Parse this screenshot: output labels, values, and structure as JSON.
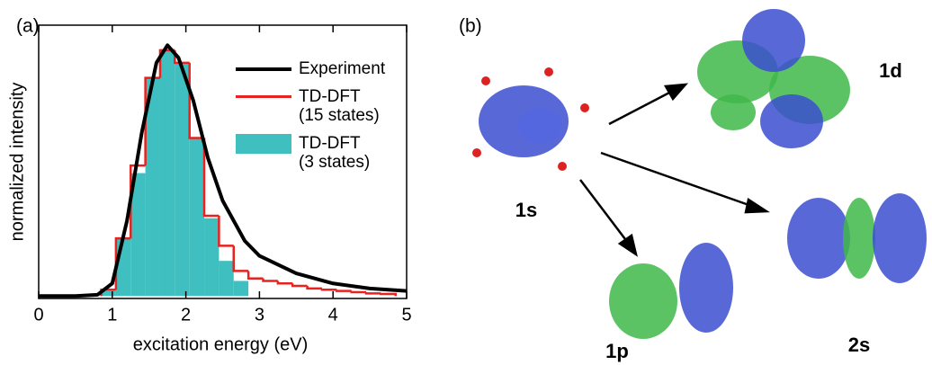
{
  "chart_data": {
    "type": "histogram",
    "panel_label": "(a)",
    "x_label": "excitation energy (eV)",
    "y_label": "normalized intensity",
    "xlim": [
      0,
      5
    ],
    "xticks": [
      0,
      1,
      2,
      3,
      4,
      5
    ],
    "ylim": [
      -0.01,
      1.08
    ],
    "series": [
      {
        "name": "Experiment",
        "color": "#000000",
        "type": "line",
        "x": [
          0,
          0.5,
          0.8,
          1.0,
          1.2,
          1.4,
          1.6,
          1.75,
          1.9,
          2.1,
          2.3,
          2.5,
          2.8,
          3.0,
          3.5,
          4.0,
          4.5,
          5.0
        ],
        "values": [
          0,
          0,
          0.005,
          0.05,
          0.3,
          0.65,
          0.93,
          1.0,
          0.95,
          0.78,
          0.55,
          0.38,
          0.22,
          0.16,
          0.09,
          0.05,
          0.03,
          0.02
        ]
      },
      {
        "name": "TD-DFT\n(15 states)",
        "color": "#e8221e",
        "type": "step",
        "bins": [
          0.85,
          1.05,
          1.25,
          1.45,
          1.65,
          1.85,
          2.05,
          2.25,
          2.45,
          2.65,
          2.85,
          3.05,
          3.25,
          3.45,
          3.65,
          3.85,
          4.05,
          4.25,
          4.45,
          4.65,
          4.85
        ],
        "values": [
          0.025,
          0.23,
          0.52,
          0.87,
          0.98,
          0.93,
          0.63,
          0.32,
          0.2,
          0.1,
          0.07,
          0.06,
          0.05,
          0.04,
          0.03,
          0.025,
          0.02,
          0.015,
          0.01,
          0.008
        ]
      },
      {
        "name": "TD-DFT\n(3 states)",
        "color": "#3fbfbf",
        "type": "filled",
        "bins": [
          0.85,
          1.05,
          1.25,
          1.45,
          1.65,
          1.85,
          2.05,
          2.25,
          2.45,
          2.65,
          2.85
        ],
        "values": [
          0.02,
          0.23,
          0.49,
          0.87,
          0.98,
          0.93,
          0.63,
          0.31,
          0.14,
          0.06
        ]
      }
    ]
  },
  "panel_b": {
    "label": "(b)",
    "states": [
      "1s",
      "1d",
      "2s",
      "1p"
    ]
  }
}
